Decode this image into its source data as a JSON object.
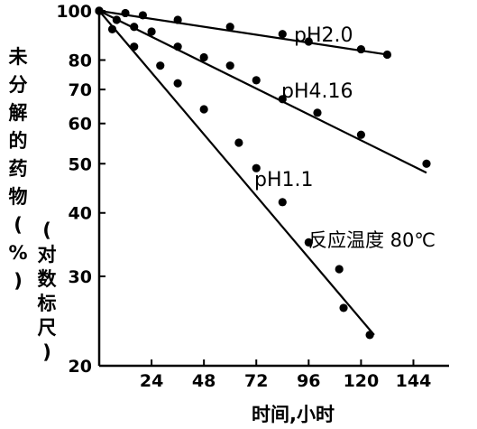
{
  "chart_data": {
    "type": "scatter",
    "title": "",
    "xlabel": "时间,小时",
    "ylabel": "未分解的药物(%)",
    "ylabel_note": "(对数标尺)",
    "yscale": "log",
    "xlim": [
      0,
      156
    ],
    "ylim": [
      20,
      100
    ],
    "xticks": [
      24,
      48,
      72,
      96,
      120,
      144
    ],
    "yticks": [
      20,
      30,
      40,
      50,
      60,
      70,
      80,
      100
    ],
    "annotation": "反应温度 80℃",
    "series": [
      {
        "name": "pH2.0",
        "points": [
          [
            0,
            100
          ],
          [
            12,
            99
          ],
          [
            20,
            98
          ],
          [
            36,
            96
          ],
          [
            60,
            93
          ],
          [
            84,
            90
          ],
          [
            96,
            87
          ],
          [
            120,
            84
          ],
          [
            132,
            82
          ]
        ],
        "fit": [
          [
            0,
            100
          ],
          [
            132,
            82
          ]
        ]
      },
      {
        "name": "pH4.16",
        "points": [
          [
            0,
            100
          ],
          [
            8,
            96
          ],
          [
            16,
            93
          ],
          [
            24,
            91
          ],
          [
            36,
            85
          ],
          [
            48,
            81
          ],
          [
            60,
            78
          ],
          [
            72,
            73
          ],
          [
            84,
            67
          ],
          [
            100,
            63
          ],
          [
            120,
            57
          ],
          [
            150,
            50
          ]
        ],
        "fit": [
          [
            0,
            100
          ],
          [
            150,
            48
          ]
        ]
      },
      {
        "name": "pH1.1",
        "points": [
          [
            0,
            100
          ],
          [
            6,
            92
          ],
          [
            16,
            85
          ],
          [
            28,
            78
          ],
          [
            36,
            72
          ],
          [
            48,
            64
          ],
          [
            64,
            55
          ],
          [
            72,
            49
          ],
          [
            84,
            42
          ],
          [
            96,
            35
          ],
          [
            110,
            31
          ],
          [
            112,
            26
          ],
          [
            124,
            23
          ]
        ],
        "fit": [
          [
            0,
            100
          ],
          [
            126,
            23
          ]
        ]
      }
    ]
  }
}
